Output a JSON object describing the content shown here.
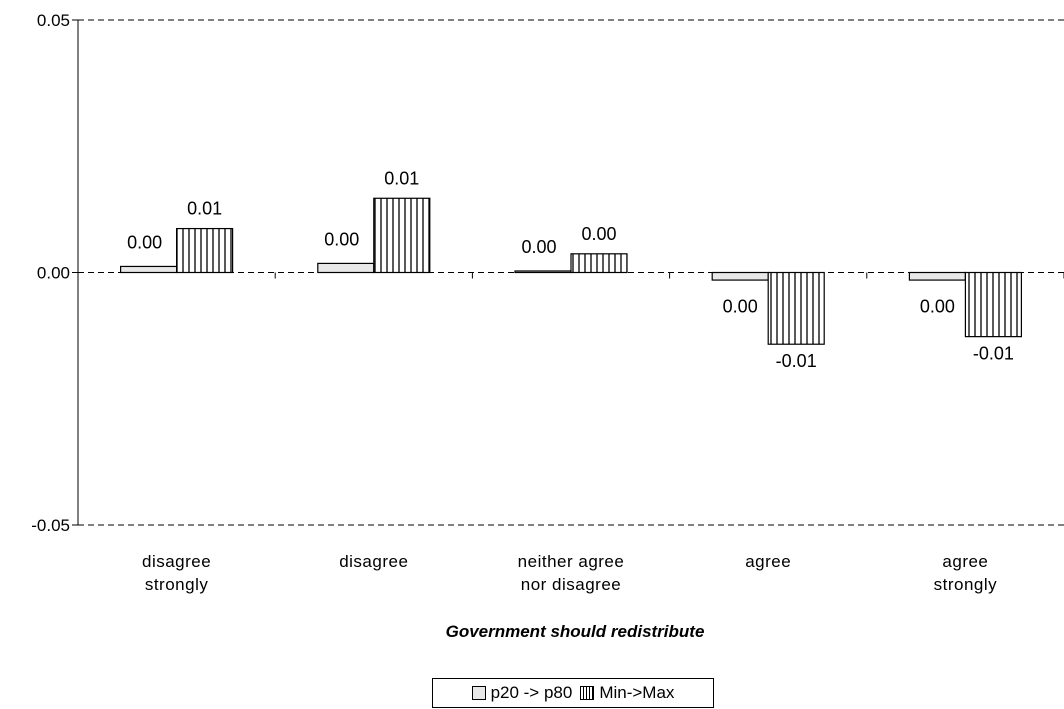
{
  "chart_data": {
    "type": "bar",
    "categories": [
      [
        "disagree",
        "strongly"
      ],
      [
        "disagree"
      ],
      [
        "neither agree",
        "nor disagree"
      ],
      [
        "agree"
      ],
      [
        "agree",
        "strongly"
      ]
    ],
    "series": [
      {
        "name": "p20 -> p80",
        "values": [
          0.0012,
          0.0018,
          0.0003,
          -0.0015,
          -0.0015
        ],
        "labels": [
          "0.00",
          "0.00",
          "0.00",
          "0.00",
          "0.00"
        ]
      },
      {
        "name": "Min->Max",
        "values": [
          0.0087,
          0.0147,
          0.0037,
          -0.0142,
          -0.0127
        ],
        "labels": [
          "0.01",
          "0.01",
          "0.00",
          "-0.01",
          "-0.01"
        ]
      }
    ],
    "yticks": [
      "0.05",
      "0.00",
      "-0.05"
    ],
    "ylim": [
      -0.05,
      0.05
    ],
    "xlabel": "Government should redistribute",
    "ylabel": "",
    "grid": "horizontal dashed",
    "legend_position": "bottom"
  },
  "colors": {
    "p20_fill": "#e8e8e8",
    "minmax_fill": "#ffffff",
    "stroke": "#000000"
  }
}
